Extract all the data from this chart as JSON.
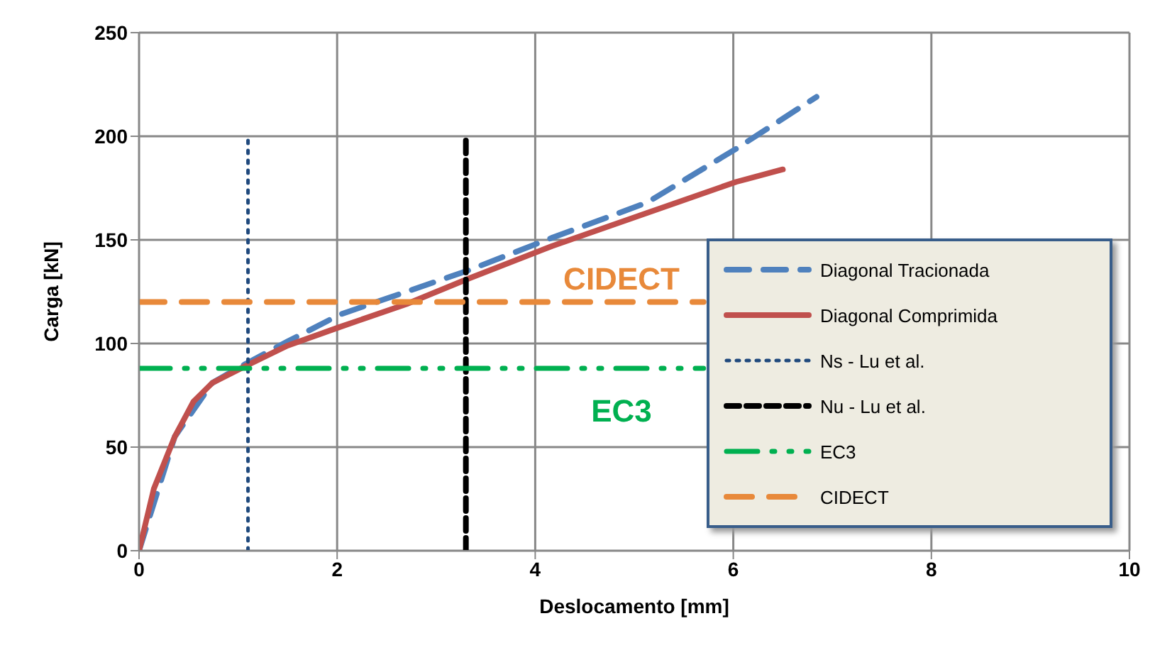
{
  "chart_data": {
    "type": "line",
    "xlabel": "Deslocamento [mm]",
    "ylabel": "Carga [kN]",
    "xlim": [
      0,
      10
    ],
    "ylim": [
      0,
      250
    ],
    "xticks": [
      0,
      2,
      4,
      6,
      8,
      10
    ],
    "yticks": [
      0,
      50,
      100,
      150,
      200,
      250
    ],
    "grid": true,
    "legend": "right",
    "marker": "none",
    "annotations": [
      "CIDECT",
      "EC3"
    ],
    "series": [
      {
        "name": "Diagonal Tracionada",
        "color": "#4f81bd",
        "line_style": "dashed",
        "x": [
          0,
          0.36,
          0.74,
          1.07,
          1.5,
          2.03,
          2.7,
          3.31,
          4.17,
          5.13,
          6.03,
          6.84
        ],
        "values": [
          0,
          55,
          81,
          90,
          101,
          114,
          125,
          135,
          151,
          168,
          194,
          219
        ]
      },
      {
        "name": "Diagonal Comprimida",
        "color": "#c0504d",
        "line_style": "solid",
        "x": [
          0,
          0.15,
          0.36,
          0.55,
          0.74,
          1.07,
          1.5,
          2.03,
          2.7,
          3.31,
          4.17,
          5.13,
          6.03,
          6.5
        ],
        "values": [
          0,
          30,
          55,
          72,
          81,
          89,
          99,
          108,
          119,
          131,
          147,
          163,
          178,
          184
        ]
      },
      {
        "name": "Ns - Lu et al.",
        "color": "#1f497d",
        "line_style": "dotted",
        "x": [
          1.1,
          1.1
        ],
        "values": [
          0,
          200
        ]
      },
      {
        "name": "Nu - Lu et al.",
        "color": "#000000",
        "line_style": "dashed",
        "x": [
          3.3,
          3.3
        ],
        "values": [
          0,
          200
        ]
      },
      {
        "name": "EC3",
        "color": "#00b050",
        "line_style": "dashdotdot",
        "x": [
          0,
          5.7
        ],
        "values": [
          88,
          88
        ]
      },
      {
        "name": "CIDECT",
        "color": "#e8893a",
        "line_style": "dashed",
        "x": [
          0,
          5.7
        ],
        "values": [
          120,
          120
        ]
      }
    ]
  }
}
